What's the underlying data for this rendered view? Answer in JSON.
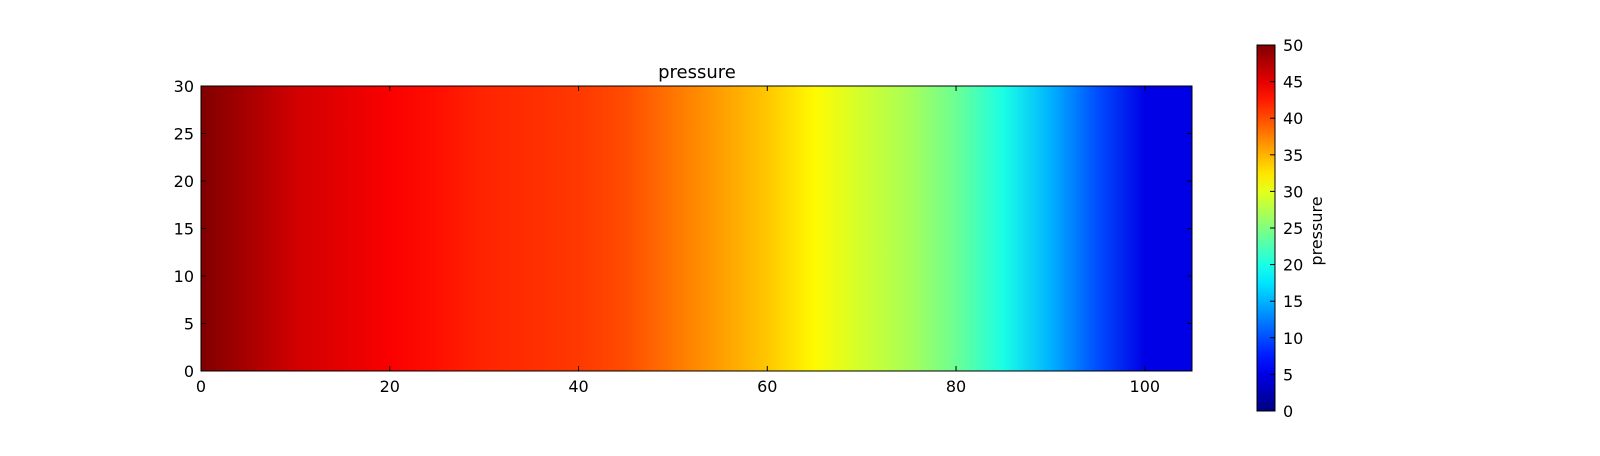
{
  "chart_data": {
    "type": "heatmap",
    "title": "pressure",
    "xlabel": "",
    "ylabel": "",
    "xlim": [
      0,
      105
    ],
    "ylim": [
      0,
      30
    ],
    "xticks": [
      0,
      20,
      40,
      60,
      80,
      100
    ],
    "yticks": [
      0,
      5,
      10,
      15,
      20,
      25,
      30
    ],
    "colormap": "jet",
    "colorbar": {
      "label": "pressure",
      "range": [
        0,
        50
      ],
      "ticks": [
        0,
        5,
        10,
        15,
        20,
        25,
        30,
        35,
        40,
        45,
        50
      ]
    },
    "x": [
      0,
      5,
      10,
      15,
      20,
      25,
      30,
      35,
      40,
      45,
      50,
      55,
      60,
      65,
      70,
      75,
      80,
      85,
      90,
      95,
      100,
      105
    ],
    "pressure_along_x": [
      50,
      48,
      46,
      45,
      44,
      43,
      42,
      41.5,
      41,
      40,
      38,
      36,
      34,
      31.5,
      29,
      27,
      24,
      20,
      15,
      10,
      5,
      5
    ],
    "grid": false
  }
}
